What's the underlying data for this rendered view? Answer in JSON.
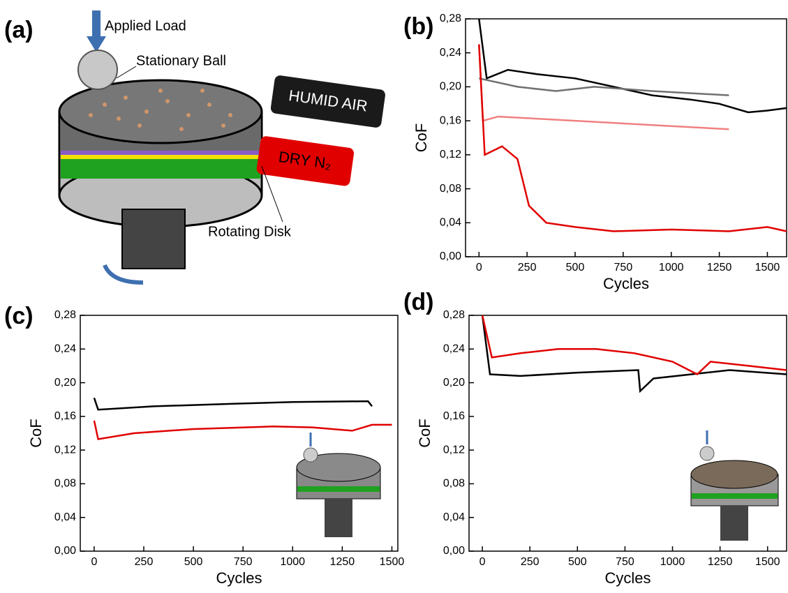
{
  "panel_a": {
    "label": "(a)",
    "applied_load": "Applied Load",
    "stationary_ball": "Stationary Ball",
    "humid_air": "HUMID AIR",
    "dry_n2": "DRY N₂",
    "rotating_disk": "Rotating Disk"
  },
  "chart_data": [
    {
      "type": "line",
      "panel_label": "(b)",
      "x_label": "Cycles",
      "y_label": "CoF",
      "xlim": [
        -70,
        1600
      ],
      "xticks": [
        0,
        250,
        500,
        750,
        1000,
        1250,
        1500
      ],
      "ylim": [
        0,
        0.28
      ],
      "yticks": [
        {
          "value": 0,
          "label": "0,00"
        },
        {
          "value": 0.04,
          "label": "0,04"
        },
        {
          "value": 0.08,
          "label": "0,08"
        },
        {
          "value": 0.12,
          "label": "0,12"
        },
        {
          "value": 0.16,
          "label": "0,16"
        },
        {
          "value": 0.2,
          "label": "0,20"
        },
        {
          "value": 0.24,
          "label": "0,24"
        },
        {
          "value": 0.28,
          "label": "0,28"
        }
      ],
      "series": [
        {
          "color": "#000000",
          "x": [
            0,
            40,
            150,
            300,
            500,
            700,
            900,
            1100,
            1250,
            1400,
            1500,
            1600
          ],
          "values": [
            0.28,
            0.21,
            0.22,
            0.215,
            0.21,
            0.2,
            0.19,
            0.185,
            0.18,
            0.17,
            0.172,
            0.175
          ]
        },
        {
          "color": "#707070",
          "x": [
            0,
            200,
            400,
            600,
            900,
            1300
          ],
          "values": [
            0.21,
            0.2,
            0.195,
            0.2,
            0.195,
            0.19
          ]
        },
        {
          "color": "#f08080",
          "x": [
            0,
            20,
            100,
            500,
            900,
            1300
          ],
          "values": [
            0.25,
            0.16,
            0.165,
            0.16,
            0.155,
            0.15
          ]
        },
        {
          "color": "#e00000",
          "x": [
            0,
            30,
            120,
            200,
            260,
            350,
            500,
            700,
            1000,
            1300,
            1500,
            1600
          ],
          "values": [
            0.25,
            0.12,
            0.13,
            0.115,
            0.06,
            0.04,
            0.035,
            0.03,
            0.032,
            0.03,
            0.035,
            0.03
          ]
        }
      ]
    },
    {
      "type": "line",
      "panel_label": "(c)",
      "x_label": "Cycles",
      "y_label": "CoF",
      "xlim": [
        -70,
        1530
      ],
      "xticks": [
        0,
        250,
        500,
        750,
        1000,
        1250,
        1500
      ],
      "ylim": [
        0,
        0.28
      ],
      "yticks": [
        {
          "value": 0,
          "label": "0,00"
        },
        {
          "value": 0.04,
          "label": "0,04"
        },
        {
          "value": 0.08,
          "label": "0,08"
        },
        {
          "value": 0.12,
          "label": "0,12"
        },
        {
          "value": 0.16,
          "label": "0,16"
        },
        {
          "value": 0.2,
          "label": "0,20"
        },
        {
          "value": 0.24,
          "label": "0,24"
        },
        {
          "value": 0.28,
          "label": "0,28"
        }
      ],
      "series": [
        {
          "color": "#000000",
          "x": [
            0,
            20,
            300,
            700,
            1000,
            1380,
            1400
          ],
          "values": [
            0.182,
            0.168,
            0.172,
            0.175,
            0.177,
            0.178,
            0.172
          ]
        },
        {
          "color": "#e00000",
          "x": [
            0,
            20,
            200,
            500,
            900,
            1100,
            1300,
            1400,
            1500
          ],
          "values": [
            0.155,
            0.133,
            0.14,
            0.145,
            0.148,
            0.147,
            0.143,
            0.15,
            0.15
          ]
        }
      ]
    },
    {
      "type": "line",
      "panel_label": "(d)",
      "x_label": "Cycles",
      "y_label": "CoF",
      "xlim": [
        -70,
        1600
      ],
      "xticks": [
        0,
        250,
        500,
        750,
        1000,
        1250,
        1500
      ],
      "ylim": [
        0,
        0.28
      ],
      "yticks": [
        {
          "value": 0,
          "label": "0,00"
        },
        {
          "value": 0.04,
          "label": "0,04"
        },
        {
          "value": 0.08,
          "label": "0,08"
        },
        {
          "value": 0.12,
          "label": "0,12"
        },
        {
          "value": 0.16,
          "label": "0,16"
        },
        {
          "value": 0.2,
          "label": "0,20"
        },
        {
          "value": 0.24,
          "label": "0,24"
        },
        {
          "value": 0.28,
          "label": "0,28"
        }
      ],
      "series": [
        {
          "color": "#000000",
          "x": [
            0,
            40,
            200,
            500,
            820,
            830,
            900,
            1100,
            1300,
            1600
          ],
          "values": [
            0.28,
            0.21,
            0.208,
            0.212,
            0.215,
            0.19,
            0.205,
            0.21,
            0.215,
            0.21
          ]
        },
        {
          "color": "#e00000",
          "x": [
            0,
            50,
            200,
            400,
            600,
            800,
            1000,
            1130,
            1200,
            1400,
            1600
          ],
          "values": [
            0.28,
            0.23,
            0.235,
            0.24,
            0.24,
            0.235,
            0.225,
            0.21,
            0.225,
            0.22,
            0.215
          ]
        }
      ]
    }
  ]
}
